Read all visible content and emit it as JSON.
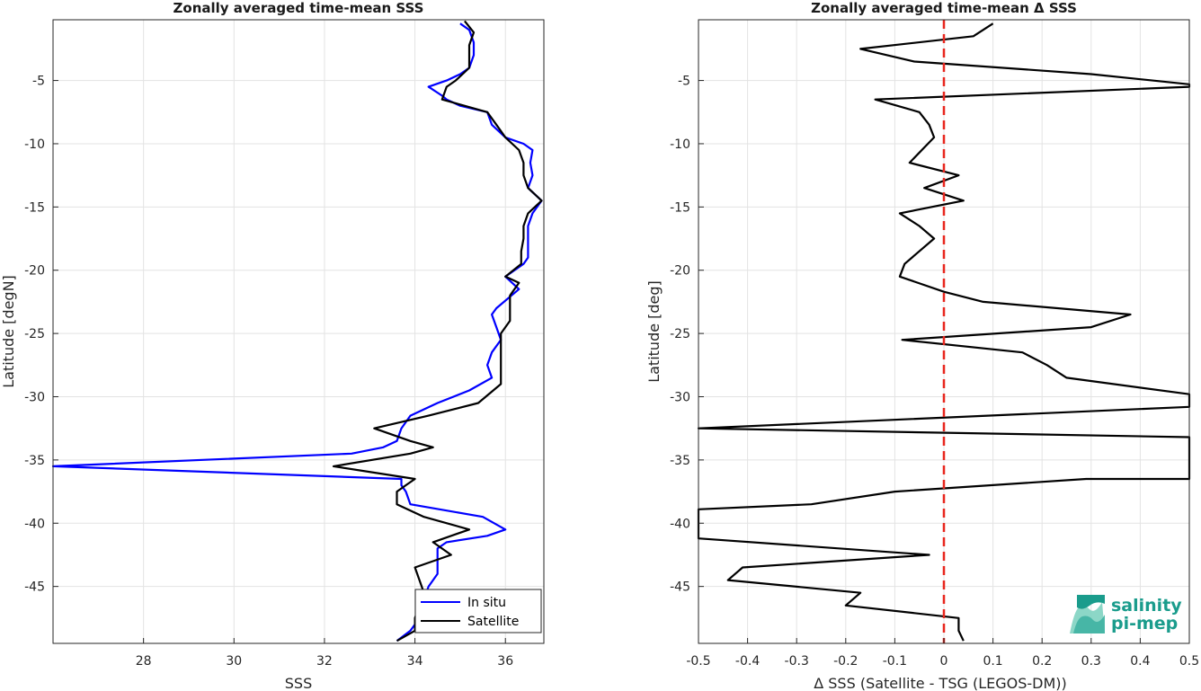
{
  "colors": {
    "insitu": "#0000ff",
    "satellite": "#000000",
    "diff": "#000000",
    "zero_line": "#e8261e",
    "grid": "#e3e3e3",
    "axes": "#262626",
    "logo": "#1a9c8c"
  },
  "logo": {
    "line1": "salinity",
    "line2": "pi-mep"
  },
  "chart_data": [
    {
      "type": "line",
      "title": "Zonally averaged time-mean SSS",
      "xlabel": "SSS",
      "ylabel": "Latitude [degN]",
      "xlim": [
        26.0,
        36.85
      ],
      "ylim": [
        -49.5,
        -0.2
      ],
      "xticks": [
        28,
        30,
        32,
        34,
        36
      ],
      "yticks": [
        -5,
        -10,
        -15,
        -20,
        -25,
        -30,
        -35,
        -40,
        -45
      ],
      "grid": true,
      "legend": {
        "position": "bottom-right",
        "entries": [
          "In situ",
          "Satellite"
        ]
      },
      "series": [
        {
          "name": "In situ",
          "color_key": "insitu",
          "points": [
            [
              35.0,
              -0.5
            ],
            [
              35.2,
              -1.0
            ],
            [
              35.3,
              -2.0
            ],
            [
              35.3,
              -3.0
            ],
            [
              35.2,
              -4.0
            ],
            [
              35.0,
              -4.5
            ],
            [
              34.7,
              -5.0
            ],
            [
              34.3,
              -5.5
            ],
            [
              34.6,
              -6.2
            ],
            [
              34.7,
              -6.5
            ],
            [
              35.0,
              -7.0
            ],
            [
              35.6,
              -7.5
            ],
            [
              35.7,
              -8.5
            ],
            [
              36.0,
              -9.5
            ],
            [
              36.4,
              -10.0
            ],
            [
              36.6,
              -10.5
            ],
            [
              36.55,
              -11.5
            ],
            [
              36.6,
              -12.5
            ],
            [
              36.5,
              -13.5
            ],
            [
              36.8,
              -14.5
            ],
            [
              36.6,
              -15.5
            ],
            [
              36.5,
              -16.5
            ],
            [
              36.5,
              -17.5
            ],
            [
              36.5,
              -19.0
            ],
            [
              36.4,
              -19.5
            ],
            [
              36.0,
              -20.5
            ],
            [
              36.3,
              -21.5
            ],
            [
              35.8,
              -23.0
            ],
            [
              35.7,
              -23.5
            ],
            [
              35.8,
              -24.5
            ],
            [
              35.9,
              -25.5
            ],
            [
              35.7,
              -26.5
            ],
            [
              35.6,
              -27.5
            ],
            [
              35.7,
              -28.5
            ],
            [
              35.2,
              -29.5
            ],
            [
              34.5,
              -30.5
            ],
            [
              33.9,
              -31.5
            ],
            [
              33.7,
              -32.5
            ],
            [
              33.6,
              -33.5
            ],
            [
              33.3,
              -34.0
            ],
            [
              32.6,
              -34.5
            ],
            [
              26.0,
              -35.5
            ],
            [
              33.7,
              -36.5
            ],
            [
              33.7,
              -37.0
            ],
            [
              33.8,
              -37.5
            ],
            [
              33.9,
              -38.5
            ],
            [
              34.7,
              -39.0
            ],
            [
              35.5,
              -39.5
            ],
            [
              36.0,
              -40.5
            ],
            [
              35.6,
              -41.0
            ],
            [
              34.7,
              -41.5
            ],
            [
              34.5,
              -42.0
            ],
            [
              34.5,
              -43.0
            ],
            [
              34.5,
              -44.0
            ],
            [
              34.3,
              -45.0
            ],
            [
              34.2,
              -46.0
            ],
            [
              34.1,
              -47.0
            ],
            [
              34.0,
              -48.0
            ],
            [
              33.9,
              -48.5
            ],
            [
              33.6,
              -49.3
            ]
          ]
        },
        {
          "name": "Satellite",
          "color_key": "satellite",
          "points": [
            [
              35.1,
              -0.3
            ],
            [
              35.3,
              -1.2
            ],
            [
              35.2,
              -2.2
            ],
            [
              35.2,
              -3.0
            ],
            [
              35.2,
              -4.0
            ],
            [
              34.9,
              -5.0
            ],
            [
              34.7,
              -5.5
            ],
            [
              34.6,
              -6.5
            ],
            [
              35.6,
              -7.5
            ],
            [
              35.8,
              -8.5
            ],
            [
              36.0,
              -9.5
            ],
            [
              36.3,
              -10.5
            ],
            [
              36.4,
              -11.5
            ],
            [
              36.4,
              -12.5
            ],
            [
              36.5,
              -13.5
            ],
            [
              36.8,
              -14.5
            ],
            [
              36.5,
              -15.5
            ],
            [
              36.4,
              -16.5
            ],
            [
              36.4,
              -17.5
            ],
            [
              36.35,
              -18.5
            ],
            [
              36.35,
              -19.5
            ],
            [
              36.0,
              -20.5
            ],
            [
              36.3,
              -21.0
            ],
            [
              36.1,
              -22.0
            ],
            [
              36.1,
              -23.0
            ],
            [
              36.1,
              -24.0
            ],
            [
              35.9,
              -25.0
            ],
            [
              35.9,
              -26.0
            ],
            [
              35.9,
              -27.0
            ],
            [
              35.9,
              -28.0
            ],
            [
              35.9,
              -29.0
            ],
            [
              35.4,
              -30.5
            ],
            [
              34.3,
              -31.5
            ],
            [
              33.1,
              -32.5
            ],
            [
              33.9,
              -33.5
            ],
            [
              34.4,
              -34.0
            ],
            [
              33.9,
              -34.5
            ],
            [
              32.2,
              -35.5
            ],
            [
              34.0,
              -36.5
            ],
            [
              33.8,
              -37.0
            ],
            [
              33.6,
              -37.5
            ],
            [
              33.6,
              -38.5
            ],
            [
              34.2,
              -39.5
            ],
            [
              35.2,
              -40.5
            ],
            [
              34.4,
              -41.5
            ],
            [
              34.8,
              -42.5
            ],
            [
              34.0,
              -43.5
            ],
            [
              34.1,
              -44.5
            ],
            [
              34.2,
              -45.5
            ],
            [
              34.1,
              -46.5
            ],
            [
              34.0,
              -47.5
            ],
            [
              34.0,
              -48.5
            ],
            [
              33.6,
              -49.3
            ]
          ]
        }
      ]
    },
    {
      "type": "line",
      "title": "Zonally averaged time-mean Δ SSS",
      "xlabel": "Δ SSS (Satellite - TSG (LEGOS-DM))",
      "ylabel": "Latitude [deg]",
      "xlim": [
        -0.5,
        0.5
      ],
      "ylim": [
        -49.5,
        -0.2
      ],
      "xticks": [
        -0.5,
        -0.4,
        -0.3,
        -0.2,
        -0.1,
        0,
        0.1,
        0.2,
        0.3,
        0.4,
        0.5
      ],
      "xtick_labels": [
        "-0.5",
        "-0.4",
        "-0.3",
        "-0.2",
        "-0.1",
        "0",
        "0.1",
        "0.2",
        "0.3",
        "0.4",
        "0.5"
      ],
      "yticks": [
        -5,
        -10,
        -15,
        -20,
        -25,
        -30,
        -35,
        -40,
        -45
      ],
      "grid": true,
      "reference_line": {
        "x": 0,
        "style": "dashed",
        "color_key": "zero_line"
      },
      "series": [
        {
          "color_key": "diff",
          "points": [
            [
              0.1,
              -0.5
            ],
            [
              0.06,
              -1.5
            ],
            [
              -0.17,
              -2.5
            ],
            [
              -0.06,
              -3.5
            ],
            [
              0.3,
              -4.5
            ],
            [
              0.5,
              -5.3
            ],
            [
              0.5,
              -5.5
            ],
            [
              -0.14,
              -6.5
            ],
            [
              -0.05,
              -7.5
            ],
            [
              -0.03,
              -8.5
            ],
            [
              -0.02,
              -9.5
            ],
            [
              -0.07,
              -11.5
            ],
            [
              0.03,
              -12.5
            ],
            [
              -0.04,
              -13.5
            ],
            [
              0.04,
              -14.5
            ],
            [
              -0.09,
              -15.5
            ],
            [
              -0.05,
              -16.5
            ],
            [
              -0.02,
              -17.5
            ],
            [
              -0.05,
              -18.5
            ],
            [
              -0.08,
              -19.5
            ],
            [
              -0.09,
              -20.5
            ],
            [
              0.0,
              -21.7
            ],
            [
              0.08,
              -22.5
            ],
            [
              0.38,
              -23.5
            ],
            [
              0.3,
              -24.5
            ],
            [
              -0.085,
              -25.5
            ],
            [
              0.16,
              -26.5
            ],
            [
              0.21,
              -27.5
            ],
            [
              0.25,
              -28.5
            ],
            [
              0.5,
              -29.8
            ],
            [
              0.5,
              -30.8
            ],
            [
              -0.5,
              -32.5
            ],
            [
              0.5,
              -33.2
            ],
            [
              0.5,
              -36.5
            ],
            [
              0.29,
              -36.5
            ],
            [
              -0.1,
              -37.5
            ],
            [
              -0.27,
              -38.5
            ],
            [
              -0.5,
              -38.9
            ],
            [
              -0.5,
              -41.2
            ],
            [
              -0.03,
              -42.5
            ],
            [
              -0.41,
              -43.5
            ],
            [
              -0.44,
              -44.5
            ],
            [
              -0.17,
              -45.5
            ],
            [
              -0.2,
              -46.5
            ],
            [
              0.03,
              -47.5
            ],
            [
              0.03,
              -48.5
            ],
            [
              0.04,
              -49.3
            ]
          ]
        }
      ]
    }
  ]
}
